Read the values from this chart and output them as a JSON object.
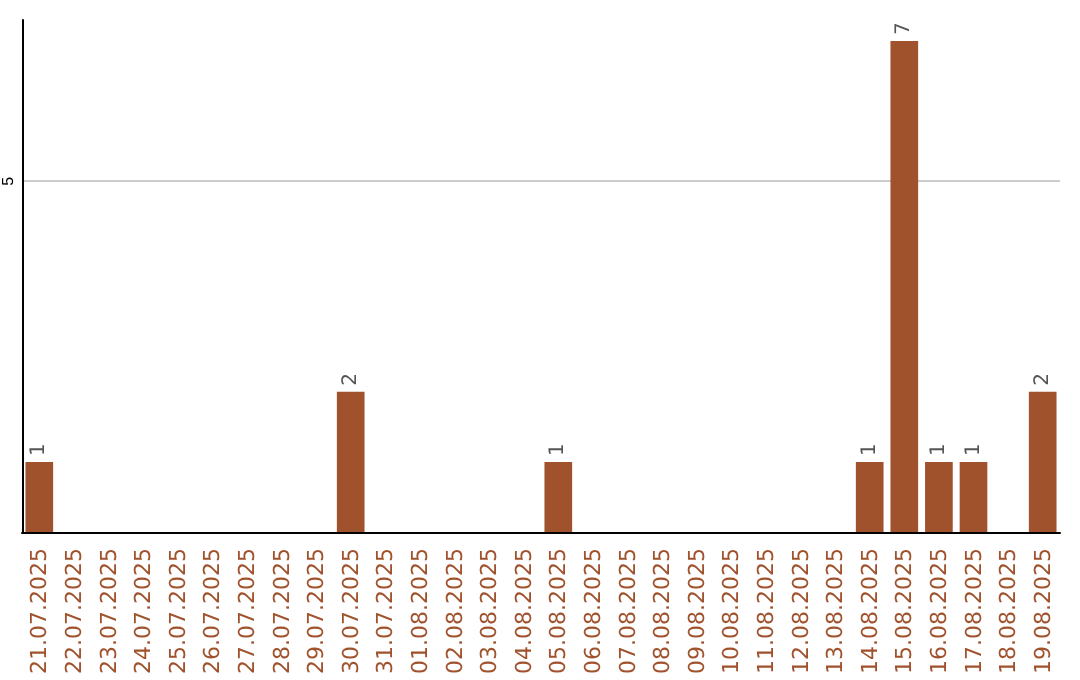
{
  "chart_data": {
    "type": "bar",
    "categories": [
      "21.07.2025",
      "22.07.2025",
      "23.07.2025",
      "24.07.2025",
      "25.07.2025",
      "26.07.2025",
      "27.07.2025",
      "28.07.2025",
      "29.07.2025",
      "30.07.2025",
      "31.07.2025",
      "01.08.2025",
      "02.08.2025",
      "03.08.2025",
      "04.08.2025",
      "05.08.2025",
      "06.08.2025",
      "07.08.2025",
      "08.08.2025",
      "09.08.2025",
      "10.08.2025",
      "11.08.2025",
      "12.08.2025",
      "13.08.2025",
      "14.08.2025",
      "15.08.2025",
      "16.08.2025",
      "17.08.2025",
      "18.08.2025",
      "19.08.2025"
    ],
    "values": [
      1,
      0,
      0,
      0,
      0,
      0,
      0,
      0,
      0,
      2,
      0,
      0,
      0,
      0,
      0,
      1,
      0,
      0,
      0,
      0,
      0,
      0,
      0,
      0,
      1,
      7,
      1,
      1,
      0,
      2
    ],
    "color": "#a0522d",
    "value_labels": [
      "1",
      null,
      null,
      null,
      null,
      null,
      null,
      null,
      null,
      "2",
      null,
      null,
      null,
      null,
      null,
      "1",
      null,
      null,
      null,
      null,
      null,
      null,
      null,
      null,
      "1",
      "7",
      "1",
      "1",
      null,
      "2"
    ],
    "ylim": [
      0,
      7.3
    ],
    "yticks": [
      5
    ],
    "grid": "y"
  }
}
